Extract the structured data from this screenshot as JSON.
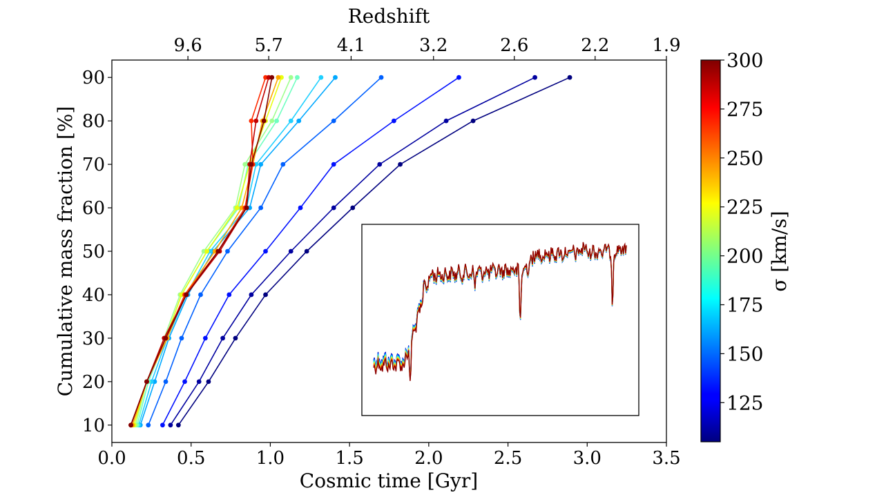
{
  "chart_data": {
    "type": "line",
    "xlabel": "Cosmic time [Gyr]",
    "ylabel": "Cumulative mass fraction [%]",
    "top_axis_label": "Redshift",
    "xlim": [
      0.0,
      3.5
    ],
    "ylim": [
      6,
      94
    ],
    "x_ticks": [
      0.0,
      0.5,
      1.0,
      1.5,
      2.0,
      2.5,
      3.0,
      3.5
    ],
    "x_tick_labels": [
      "0.0",
      "0.5",
      "1.0",
      "1.5",
      "2.0",
      "2.5",
      "3.0",
      "3.5"
    ],
    "y_ticks": [
      10,
      20,
      30,
      40,
      50,
      60,
      70,
      80,
      90
    ],
    "y_tick_labels": [
      "10",
      "20",
      "30",
      "40",
      "50",
      "60",
      "70",
      "80",
      "90"
    ],
    "top_ticks": [
      {
        "time": 0.48,
        "label": "9.6"
      },
      {
        "time": 0.99,
        "label": "5.7"
      },
      {
        "time": 1.51,
        "label": "4.1"
      },
      {
        "time": 2.03,
        "label": "3.2"
      },
      {
        "time": 2.54,
        "label": "2.6"
      },
      {
        "time": 3.05,
        "label": "2.2"
      },
      {
        "time": 3.5,
        "label": "1.9"
      }
    ],
    "grid": false,
    "colorbar": {
      "label": "σ [km/s]",
      "min": 105,
      "max": 300,
      "ticks": [
        125,
        150,
        175,
        200,
        225,
        250,
        275,
        300
      ],
      "tick_labels": [
        "125",
        "150",
        "175",
        "200",
        "225",
        "250",
        "275",
        "300"
      ],
      "colormap": "jet"
    },
    "mass_levels": [
      10,
      20,
      30,
      40,
      50,
      60,
      70,
      80,
      90
    ],
    "series": [
      {
        "sigma": 105,
        "color": "#00007f",
        "times": [
          0.42,
          0.61,
          0.78,
          0.97,
          1.23,
          1.52,
          1.82,
          2.28,
          2.89
        ]
      },
      {
        "sigma": 112,
        "color": "#00009f",
        "times": [
          0.37,
          0.55,
          0.7,
          0.88,
          1.13,
          1.4,
          1.69,
          2.11,
          2.67
        ]
      },
      {
        "sigma": 122,
        "color": "#0010ff",
        "times": [
          0.32,
          0.46,
          0.59,
          0.74,
          0.97,
          1.19,
          1.4,
          1.78,
          2.19
        ]
      },
      {
        "sigma": 140,
        "color": "#0060ff",
        "times": [
          0.23,
          0.34,
          0.44,
          0.56,
          0.73,
          0.94,
          1.08,
          1.4,
          1.7
        ]
      },
      {
        "sigma": 158,
        "color": "#00a8ff",
        "times": [
          0.18,
          0.27,
          0.36,
          0.48,
          0.64,
          0.87,
          0.94,
          1.18,
          1.41
        ]
      },
      {
        "sigma": 168,
        "color": "#20d0ff",
        "times": [
          0.17,
          0.25,
          0.35,
          0.47,
          0.62,
          0.85,
          0.91,
          1.13,
          1.32
        ]
      },
      {
        "sigma": 182,
        "color": "#70ffc0",
        "times": [
          0.16,
          0.23,
          0.34,
          0.44,
          0.6,
          0.8,
          0.86,
          1.04,
          1.17
        ]
      },
      {
        "sigma": 196,
        "color": "#a0ff90",
        "times": [
          0.15,
          0.22,
          0.33,
          0.43,
          0.58,
          0.78,
          0.84,
          1.01,
          1.13
        ]
      },
      {
        "sigma": 222,
        "color": "#e8ff10",
        "times": [
          0.14,
          0.22,
          0.34,
          0.44,
          0.6,
          0.79,
          0.87,
          0.97,
          1.07
        ]
      },
      {
        "sigma": 248,
        "color": "#ffa800",
        "times": [
          0.13,
          0.22,
          0.35,
          0.46,
          0.65,
          0.82,
          0.89,
          0.95,
          1.05
        ]
      },
      {
        "sigma": 270,
        "color": "#ff2a00",
        "times": [
          0.12,
          0.22,
          0.34,
          0.46,
          0.67,
          0.84,
          0.89,
          0.88,
          0.97
        ]
      },
      {
        "sigma": 290,
        "color": "#c20000",
        "times": [
          0.12,
          0.22,
          0.33,
          0.47,
          0.68,
          0.85,
          0.87,
          0.91,
          0.99
        ]
      },
      {
        "sigma": 300,
        "color": "#800000",
        "times": [
          0.12,
          0.22,
          0.34,
          0.47,
          0.67,
          0.85,
          0.88,
          0.96,
          1.01
        ]
      }
    ]
  },
  "inset": {
    "description_note": "",
    "spectra_count": 8
  }
}
